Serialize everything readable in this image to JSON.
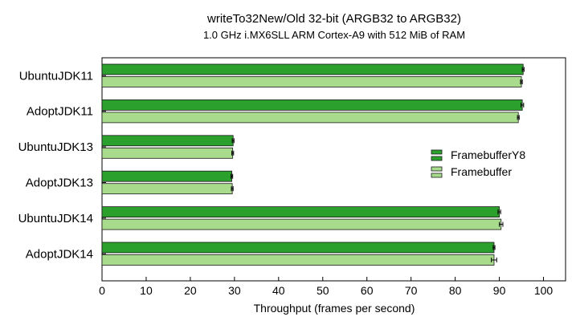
{
  "chart_data": {
    "type": "bar",
    "orientation": "horizontal",
    "title": "writeTo32New/Old 32-bit (ARGB32 to ARGB32)",
    "subtitle": "1.0 GHz i.MX6SLL ARM Cortex-A9 with 512 MiB of RAM",
    "xlabel": "Throughput (frames per second)",
    "ylabel": "",
    "xlim": [
      0,
      105
    ],
    "xticks": [
      0,
      10,
      20,
      30,
      40,
      50,
      60,
      70,
      80,
      90,
      100
    ],
    "categories": [
      "UbuntuJDK11",
      "AdoptJDK11",
      "UbuntuJDK13",
      "AdoptJDK13",
      "UbuntuJDK14",
      "AdoptJDK14"
    ],
    "series": [
      {
        "name": "FramebufferY8",
        "color": "#2ca02c",
        "values": [
          95.4,
          95.2,
          29.7,
          29.4,
          90.0,
          88.8
        ],
        "errors": [
          0.2,
          0.3,
          0.2,
          0.2,
          0.3,
          0.2
        ]
      },
      {
        "name": "Framebuffer",
        "color": "#a8dc8c",
        "values": [
          95.0,
          94.3,
          29.6,
          29.5,
          90.4,
          88.8
        ],
        "errors": [
          0.2,
          0.2,
          0.2,
          0.2,
          0.4,
          0.6
        ]
      }
    ],
    "grid": false,
    "legend_position": "right"
  }
}
